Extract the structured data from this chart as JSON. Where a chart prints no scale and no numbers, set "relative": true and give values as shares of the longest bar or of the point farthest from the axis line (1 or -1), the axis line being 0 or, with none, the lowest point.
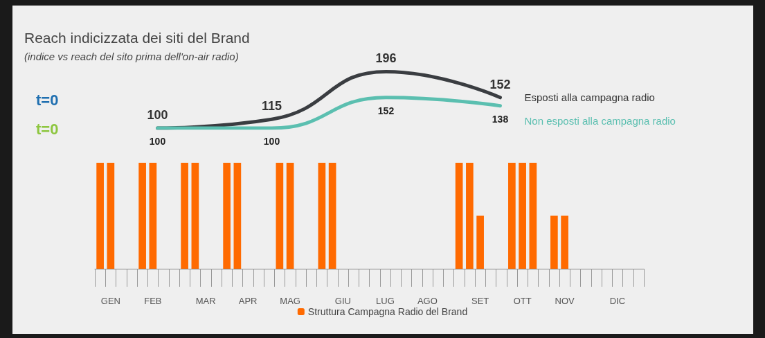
{
  "chart_data": [
    {
      "type": "line",
      "title": "Reach indicizzata dei siti del Brand",
      "subtitle": "(indice vs reach del sito prima dell'on-air radio)",
      "categories": [
        null,
        null,
        null,
        null
      ],
      "series": [
        {
          "name": "Esposti alla campagna radio",
          "color": "#3a3d41",
          "values": [
            100,
            115,
            196,
            152
          ]
        },
        {
          "name": "Non esposti alla campagna radio",
          "color": "#5bbfb0",
          "values": [
            100,
            100,
            152,
            138
          ]
        }
      ],
      "data_labels": true,
      "annotations": [
        "t=0",
        "t=0"
      ],
      "legend": false,
      "grid": false,
      "tick_labels": false
    },
    {
      "type": "bar",
      "relative": true,
      "categories": [
        null,
        "GEN",
        null,
        null,
        null,
        "FEB",
        null,
        null,
        null,
        null,
        "MAR",
        null,
        null,
        null,
        "APR",
        null,
        null,
        null,
        "MAG",
        null,
        null,
        null,
        null,
        "GIU",
        null,
        null,
        null,
        "LUG",
        null,
        null,
        null,
        "AGO",
        null,
        null,
        null,
        null,
        "SET",
        null,
        null,
        null,
        "OTT",
        null,
        null,
        null,
        "NOV",
        null,
        null,
        null,
        null,
        "DIC",
        null,
        null
      ],
      "series": [
        {
          "name": "Struttura Campagna Radio del Brand",
          "color": "#ff6a00",
          "values": [
            1,
            1,
            null,
            null,
            1,
            1,
            null,
            null,
            1,
            1,
            null,
            null,
            1,
            1,
            null,
            null,
            null,
            1,
            1,
            null,
            null,
            1,
            1,
            null,
            null,
            null,
            null,
            null,
            null,
            null,
            null,
            null,
            null,
            null,
            1,
            1,
            0.5,
            null,
            null,
            1,
            1,
            1,
            null,
            0.5,
            0.5,
            null,
            null,
            null,
            null,
            null,
            null,
            null
          ]
        }
      ],
      "legend": "bottom",
      "grid": false
    }
  ]
}
